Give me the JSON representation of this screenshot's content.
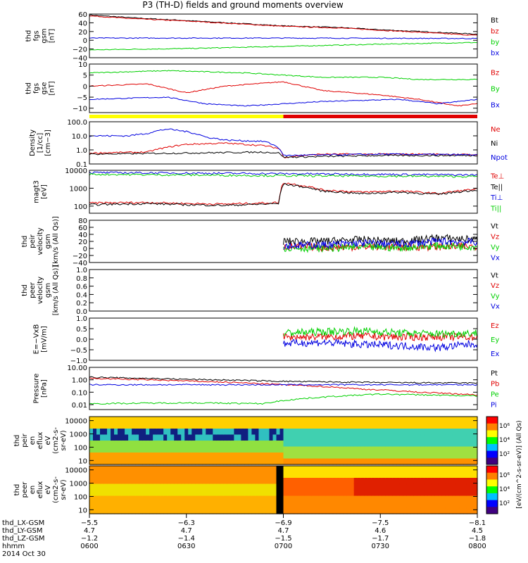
{
  "title": "P3 (TH-D) fields and ground moments overview",
  "colors": {
    "black": "#000000",
    "red": "#e00000",
    "green": "#00d000",
    "blue": "#0000e0",
    "yellow": "#ffff00",
    "barRed": "#e00000"
  },
  "chart_data": [
    {
      "id": "fgs_gsm",
      "type": "line",
      "ylabel": [
        "thd",
        "fgs",
        "gsm",
        "[nT]"
      ],
      "yrange": [
        -40,
        60
      ],
      "ticks": [
        60,
        40,
        20,
        0,
        -20,
        -40
      ],
      "tick_labels": [
        "60",
        "40",
        "20",
        "0",
        "−20",
        "−40"
      ],
      "series": [
        {
          "name": "Bt",
          "color": "black",
          "x": [
            0,
            0.1,
            0.25,
            0.5,
            0.65,
            0.75,
            0.9,
            1
          ],
          "y": [
            58,
            52,
            45,
            33,
            29,
            24,
            18,
            14
          ]
        },
        {
          "name": "bz",
          "color": "red",
          "x": [
            0,
            0.1,
            0.25,
            0.5,
            0.65,
            0.75,
            0.9,
            1
          ],
          "y": [
            56,
            50,
            44,
            32,
            28,
            23,
            16,
            11
          ]
        },
        {
          "name": "by",
          "color": "green",
          "x": [
            0,
            0.25,
            0.5,
            0.75,
            1
          ],
          "y": [
            -22,
            -19,
            -14,
            -9,
            -5
          ]
        },
        {
          "name": "bx",
          "color": "blue",
          "x": [
            0,
            0.5,
            1
          ],
          "y": [
            5,
            5,
            4
          ]
        }
      ]
    },
    {
      "id": "fgs_gse",
      "type": "line",
      "ylabel": [
        "thd",
        "fgs",
        "gse",
        "[nT]"
      ],
      "yrange": [
        -12,
        10
      ],
      "ticks": [
        10,
        5,
        0,
        -5,
        -10
      ],
      "tick_labels": [
        "10",
        "5",
        "0",
        "−5",
        "−10"
      ],
      "series": [
        {
          "name": "Bz",
          "color": "red",
          "x": [
            0,
            0.15,
            0.25,
            0.35,
            0.5,
            0.6,
            0.75,
            0.85,
            0.95,
            1
          ],
          "y": [
            0,
            1,
            -3,
            0,
            2,
            -2,
            -4,
            -6,
            -9,
            -8
          ]
        },
        {
          "name": "By",
          "color": "green",
          "x": [
            0,
            0.2,
            0.4,
            0.6,
            0.75,
            0.85,
            1
          ],
          "y": [
            6,
            7,
            6,
            4,
            4,
            3,
            3
          ]
        },
        {
          "name": "Bx",
          "color": "blue",
          "x": [
            0,
            0.2,
            0.3,
            0.4,
            0.6,
            0.8,
            0.9,
            1
          ],
          "y": [
            -6,
            -5,
            -8,
            -9,
            -7,
            -6,
            -8,
            -6
          ]
        }
      ]
    },
    {
      "id": "density",
      "type": "line",
      "scale": "log",
      "ylabel": [
        "Density",
        "[1/cc]",
        "[cm−3]"
      ],
      "yrange": [
        0.1,
        100
      ],
      "ticks": [
        100,
        10,
        1,
        0.1
      ],
      "tick_labels": [
        "100.0",
        "10.0",
        "1.0",
        "0.1"
      ],
      "series": [
        {
          "name": "Ne",
          "color": "red",
          "x": [
            0,
            0.15,
            0.2,
            0.25,
            0.35,
            0.45,
            0.49,
            0.5,
            0.6,
            0.75,
            0.9,
            1
          ],
          "y": [
            0.6,
            0.7,
            1.5,
            2.5,
            3,
            2,
            1.2,
            0.3,
            0.5,
            0.5,
            0.5,
            0.45
          ]
        },
        {
          "name": "Ni",
          "color": "black",
          "x": [
            0,
            0.25,
            0.45,
            0.49,
            0.5,
            0.75,
            1
          ],
          "y": [
            0.5,
            0.6,
            0.7,
            0.6,
            0.3,
            0.4,
            0.4
          ]
        },
        {
          "name": "Npot",
          "color": "blue",
          "x": [
            0,
            0.1,
            0.15,
            0.2,
            0.25,
            0.3,
            0.35,
            0.45,
            0.49,
            0.5,
            0.75,
            1
          ],
          "y": [
            10,
            10,
            15,
            30,
            20,
            8,
            5,
            4,
            1.2,
            0.4,
            0.5,
            0.45
          ]
        }
      ]
    },
    {
      "id": "temperature",
      "type": "line",
      "scale": "log",
      "ylabel": [
        "magt3",
        "[eV]"
      ],
      "yrange": [
        40,
        10000
      ],
      "ticks": [
        10000,
        1000,
        100
      ],
      "tick_labels": [
        "10000",
        "1000",
        "100"
      ],
      "series": [
        {
          "name": "Te⊥",
          "color": "red",
          "x": [
            0,
            0.15,
            0.25,
            0.35,
            0.45,
            0.49,
            0.5,
            0.6,
            0.7,
            0.8,
            0.9,
            1
          ],
          "y": [
            150,
            160,
            140,
            130,
            150,
            160,
            2000,
            800,
            600,
            700,
            500,
            900
          ]
        },
        {
          "name": "Te||",
          "color": "black",
          "x": [
            0,
            0.15,
            0.25,
            0.35,
            0.45,
            0.49,
            0.5,
            0.6,
            0.7,
            0.8,
            0.9,
            1
          ],
          "y": [
            120,
            140,
            120,
            110,
            130,
            140,
            1700,
            700,
            500,
            600,
            450,
            800
          ]
        },
        {
          "name": "Ti⊥",
          "color": "blue",
          "x": [
            0,
            0.5,
            1
          ],
          "y": [
            7500,
            6500,
            5500
          ]
        },
        {
          "name": "Ti||",
          "color": "green",
          "x": [
            0,
            0.5,
            1
          ],
          "y": [
            6000,
            5000,
            4500
          ]
        }
      ]
    },
    {
      "id": "peir_velocity",
      "type": "line",
      "ylabel": [
        "thd",
        "peir",
        "velocity",
        "gsm",
        "[km/s (All Qs)]"
      ],
      "yrange": [
        -40,
        80
      ],
      "ticks": [
        80,
        60,
        40,
        20,
        0,
        -20,
        -40
      ],
      "tick_labels": [
        "80",
        "60",
        "40",
        "20",
        "0",
        "−20",
        "−40"
      ],
      "series": [
        {
          "name": "Vt",
          "color": "black",
          "x": [
            0.5,
            0.6,
            0.7,
            0.8,
            0.9,
            1
          ],
          "y": [
            20,
            20,
            25,
            20,
            30,
            25
          ]
        },
        {
          "name": "Vz",
          "color": "red",
          "x": [
            0.5,
            0.6,
            0.7,
            0.8,
            0.9,
            1
          ],
          "y": [
            5,
            3,
            5,
            4,
            5,
            6
          ]
        },
        {
          "name": "Vy",
          "color": "green",
          "x": [
            0.5,
            0.6,
            0.7,
            0.8,
            0.9,
            1
          ],
          "y": [
            2,
            0,
            4,
            2,
            8,
            5
          ]
        },
        {
          "name": "Vx",
          "color": "blue",
          "x": [
            0.5,
            0.6,
            0.7,
            0.8,
            0.9,
            1
          ],
          "y": [
            8,
            10,
            15,
            12,
            20,
            18
          ]
        }
      ]
    },
    {
      "id": "peer_velocity",
      "type": "line",
      "ylabel": [
        "thd",
        "peer",
        "velocity",
        "gsm",
        "[km/s (All Qs)]"
      ],
      "yrange": [
        0,
        1
      ],
      "ticks": [
        1,
        0.8,
        0.6,
        0.4,
        0.2,
        0
      ],
      "tick_labels": [
        "1.0",
        "0.8",
        "0.6",
        "0.4",
        "0.2",
        "0.0"
      ],
      "series": [
        {
          "name": "Vt",
          "color": "black",
          "x": [],
          "y": []
        },
        {
          "name": "Vz",
          "color": "red",
          "x": [],
          "y": []
        },
        {
          "name": "Vy",
          "color": "green",
          "x": [],
          "y": []
        },
        {
          "name": "Vx",
          "color": "blue",
          "x": [],
          "y": []
        }
      ]
    },
    {
      "id": "efield",
      "type": "line",
      "ylabel": [
        "E=−VxB",
        "[mV/m]"
      ],
      "yrange": [
        -1,
        1
      ],
      "ticks": [
        1,
        0.5,
        0,
        -0.5,
        -1
      ],
      "tick_labels": [
        "1.0",
        "0.5",
        "0.0",
        "−0.5",
        "−1.0"
      ],
      "series": [
        {
          "name": "Ez",
          "color": "red",
          "x": [
            0.5,
            0.6,
            0.7,
            0.8,
            0.9,
            1
          ],
          "y": [
            0.1,
            0.12,
            0.15,
            0.1,
            0.12,
            0.1
          ]
        },
        {
          "name": "Ey",
          "color": "green",
          "x": [
            0.5,
            0.6,
            0.7,
            0.8,
            0.9,
            1
          ],
          "y": [
            0.3,
            0.35,
            0.4,
            0.3,
            0.25,
            0.3
          ]
        },
        {
          "name": "Ex",
          "color": "blue",
          "x": [
            0.5,
            0.6,
            0.7,
            0.8,
            0.9,
            1
          ],
          "y": [
            -0.2,
            -0.15,
            -0.25,
            -0.3,
            -0.4,
            -0.2
          ]
        }
      ]
    },
    {
      "id": "pressure",
      "type": "line",
      "scale": "log",
      "ylabel": [
        "Pressure",
        "[nPa]"
      ],
      "yrange": [
        0.004,
        10
      ],
      "ticks": [
        10,
        1,
        0.1,
        0.01
      ],
      "tick_labels": [
        "10.00",
        "1.00",
        "0.10",
        "0.01"
      ],
      "series": [
        {
          "name": "Pt",
          "color": "black",
          "x": [
            0,
            0.25,
            0.5,
            0.75,
            1
          ],
          "y": [
            1.6,
            1.1,
            0.75,
            0.6,
            0.55
          ]
        },
        {
          "name": "Pb",
          "color": "red",
          "x": [
            0,
            0.25,
            0.5,
            0.7,
            0.85,
            1
          ],
          "y": [
            1.3,
            0.8,
            0.4,
            0.18,
            0.1,
            0.06
          ]
        },
        {
          "name": "Pe",
          "color": "green",
          "x": [
            0,
            0.25,
            0.45,
            0.6,
            0.75,
            1
          ],
          "y": [
            0.012,
            0.014,
            0.012,
            0.04,
            0.07,
            0.05
          ]
        },
        {
          "name": "Pi",
          "color": "blue",
          "x": [
            0,
            0.5,
            1
          ],
          "y": [
            0.4,
            0.4,
            0.4
          ]
        }
      ]
    },
    {
      "id": "peir_spec",
      "type": "heatmap",
      "ylabel": [
        "thd",
        "peir",
        "en",
        "eflux",
        "eV",
        "(cm2-s-",
        "sr-eV)"
      ],
      "scale": "log",
      "yrange": [
        5,
        20000
      ],
      "ticks": [
        10000,
        1000,
        100,
        10
      ],
      "tick_labels": [
        "10000",
        "1000",
        "100",
        "10"
      ]
    },
    {
      "id": "peer_spec",
      "type": "heatmap",
      "ylabel": [
        "thd",
        "peer",
        "en",
        "eflux",
        "eV",
        "(cm2-s-",
        "sr-eV)"
      ],
      "scale": "log",
      "yrange": [
        5,
        20000
      ],
      "ticks": [
        10000,
        1000,
        100,
        10
      ],
      "tick_labels": [
        "10000",
        "1000",
        "100",
        "10"
      ]
    }
  ],
  "colorbar": {
    "label": "[eV/(cm^2-s-sr-eV)] (All Qs)",
    "ticks_top": [
      "10⁶",
      "10⁴",
      "10²"
    ],
    "ticks_bottom": [
      "10⁶",
      "10⁴",
      "10²"
    ]
  },
  "x_axis": {
    "row_labels": [
      "thd_LX-GSM",
      "thd_LY-GSM",
      "thd_LZ-GSM",
      "hhmm",
      "2014 Oct 30"
    ],
    "columns": [
      {
        "lx": "−5.5",
        "ly": "4.7",
        "lz": "−1.2",
        "hhmm": "0600"
      },
      {
        "lx": "−6.3",
        "ly": "4.7",
        "lz": "−1.4",
        "hhmm": "0630"
      },
      {
        "lx": "−6.9",
        "ly": "4.7",
        "lz": "−1.5",
        "hhmm": "0700"
      },
      {
        "lx": "−7.5",
        "ly": "4.6",
        "lz": "−1.7",
        "hhmm": "0730"
      },
      {
        "lx": "−8.1",
        "ly": "4.5",
        "lz": "−1.8",
        "hhmm": "0800"
      }
    ]
  }
}
